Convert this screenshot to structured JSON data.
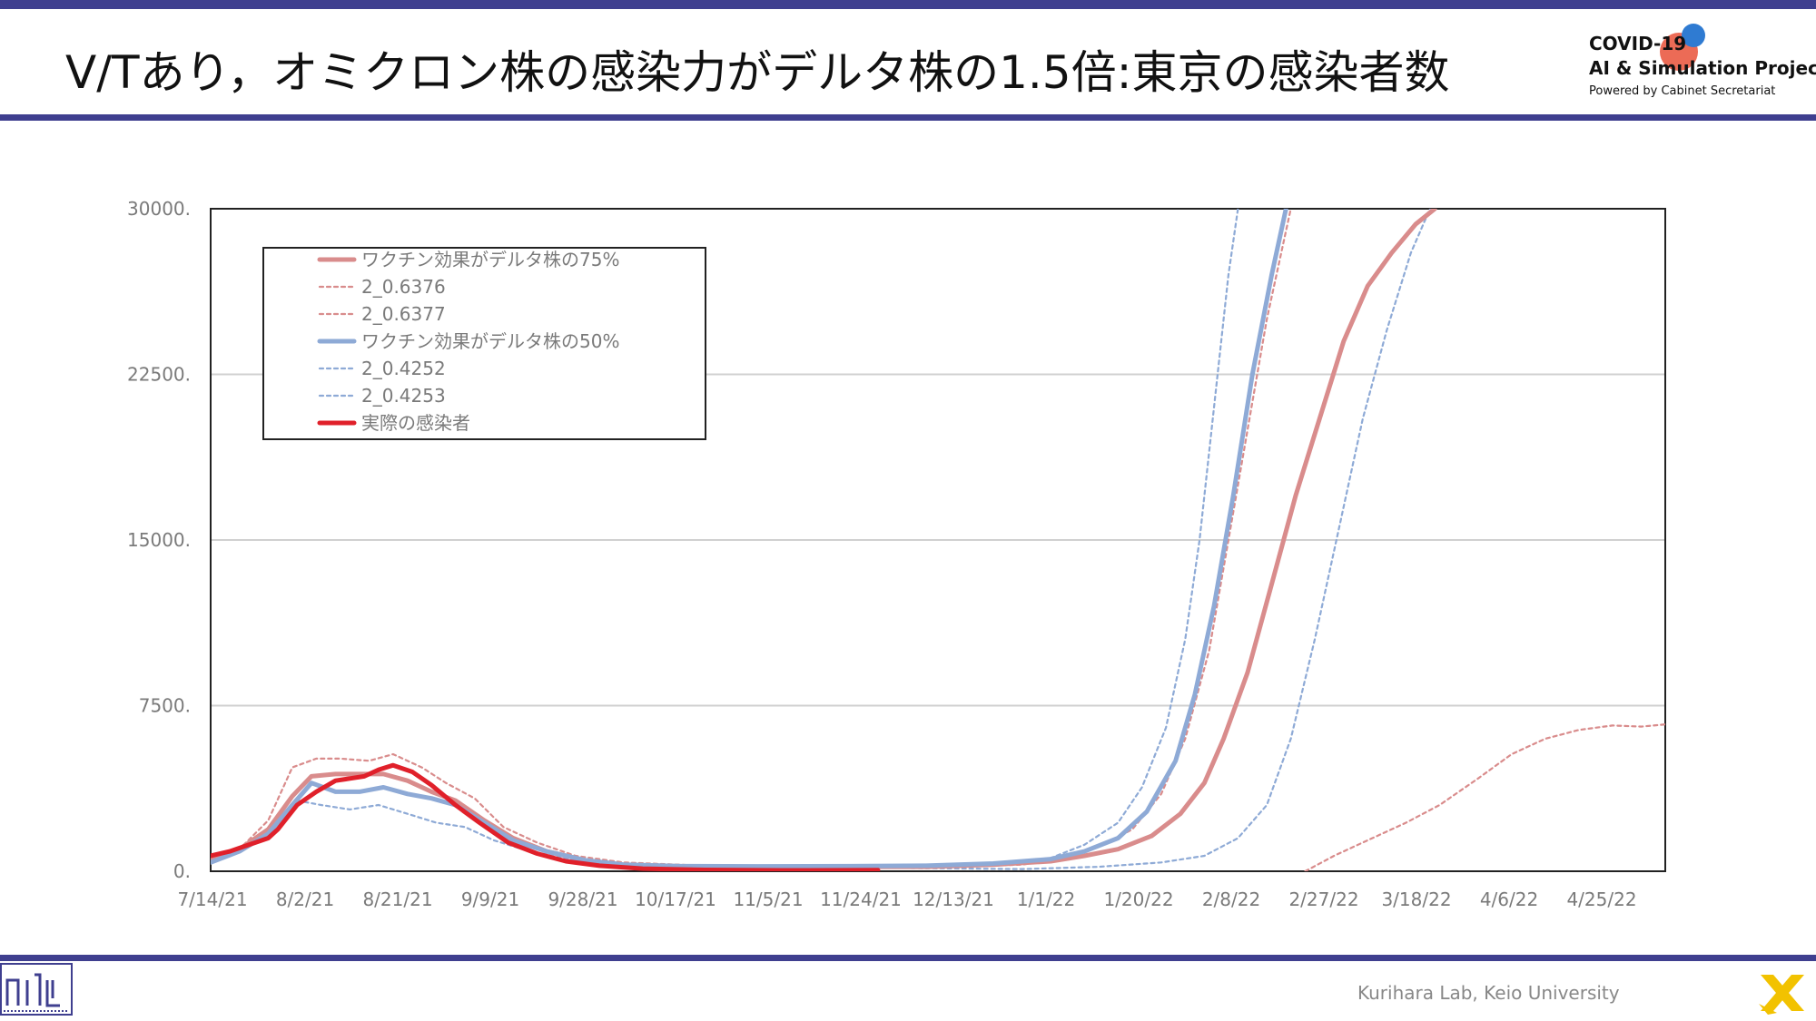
{
  "header": {
    "title": "V/Tあり，オミクロン株の感染力がデルタ株の1.5倍:東京の感染者数"
  },
  "project": {
    "line1": "COVID-19",
    "line2": "AI & Simulation Project",
    "line3": "Powered by Cabinet Secretariat"
  },
  "footer": {
    "lab": "Kurihara Lab, Keio University"
  },
  "colors": {
    "accent_bar": "#3f3f8f",
    "red_series": "#d98c8c",
    "blue_series": "#8eaad6",
    "actual_series": "#e0202a"
  },
  "chart_data": {
    "type": "line",
    "title": "",
    "xlabel": "",
    "ylabel": "",
    "xlim": [
      "2021-07-14",
      "2022-05-13"
    ],
    "ylim": [
      0,
      30000
    ],
    "y_ticks": [
      {
        "value": 0,
        "label": "0."
      },
      {
        "value": 7500,
        "label": "7500."
      },
      {
        "value": 15000,
        "label": "15000."
      },
      {
        "value": 22500,
        "label": "22500."
      },
      {
        "value": 30000,
        "label": "30000."
      }
    ],
    "x_ticks": [
      "7/14/21",
      "8/2/21",
      "8/21/21",
      "9/9/21",
      "9/28/21",
      "10/17/21",
      "11/5/21",
      "11/24/21",
      "12/13/21",
      "1/1/22",
      "1/20/22",
      "2/8/22",
      "2/27/22",
      "3/18/22",
      "4/6/22",
      "4/25/22"
    ],
    "grid": "horizontal",
    "legend_position": "top-left",
    "series": [
      {
        "name": "ワクチン効果がデルタ株の75%",
        "color": "#d98c8c",
        "style": "solid-thick",
        "points": [
          [
            "2021-07-14",
            500
          ],
          [
            "2021-07-20",
            1000
          ],
          [
            "2021-07-26",
            1900
          ],
          [
            "2021-07-31",
            3400
          ],
          [
            "2021-08-04",
            4300
          ],
          [
            "2021-08-09",
            4400
          ],
          [
            "2021-08-14",
            4400
          ],
          [
            "2021-08-19",
            4400
          ],
          [
            "2021-08-24",
            4100
          ],
          [
            "2021-08-29",
            3600
          ],
          [
            "2021-09-03",
            3200
          ],
          [
            "2021-09-09",
            2300
          ],
          [
            "2021-09-15",
            1500
          ],
          [
            "2021-09-22",
            900
          ],
          [
            "2021-09-30",
            500
          ],
          [
            "2021-10-08",
            300
          ],
          [
            "2021-10-20",
            220
          ],
          [
            "2021-11-05",
            200
          ],
          [
            "2021-11-24",
            200
          ],
          [
            "2021-12-10",
            200
          ],
          [
            "2021-12-24",
            300
          ],
          [
            "2022-01-05",
            450
          ],
          [
            "2022-01-12",
            700
          ],
          [
            "2022-01-19",
            1000
          ],
          [
            "2022-01-26",
            1600
          ],
          [
            "2022-02-01",
            2600
          ],
          [
            "2022-02-06",
            4000
          ],
          [
            "2022-02-10",
            6000
          ],
          [
            "2022-02-15",
            9000
          ],
          [
            "2022-02-20",
            13000
          ],
          [
            "2022-02-25",
            17000
          ],
          [
            "2022-03-02",
            20500
          ],
          [
            "2022-03-07",
            24000
          ],
          [
            "2022-03-12",
            26500
          ],
          [
            "2022-03-17",
            28000
          ],
          [
            "2022-03-22",
            29300
          ],
          [
            "2022-03-26",
            30000
          ]
        ]
      },
      {
        "name": "2_0.6376",
        "color": "#d98c8c",
        "style": "dotted",
        "points": [
          [
            "2021-07-14",
            500
          ],
          [
            "2021-07-20",
            1000
          ],
          [
            "2021-07-26",
            2300
          ],
          [
            "2021-07-31",
            4700
          ],
          [
            "2021-08-05",
            5100
          ],
          [
            "2021-08-10",
            5100
          ],
          [
            "2021-08-16",
            5000
          ],
          [
            "2021-08-21",
            5300
          ],
          [
            "2021-08-27",
            4700
          ],
          [
            "2021-09-01",
            4000
          ],
          [
            "2021-09-07",
            3300
          ],
          [
            "2021-09-13",
            2000
          ],
          [
            "2021-09-20",
            1300
          ],
          [
            "2021-09-28",
            700
          ],
          [
            "2021-10-08",
            400
          ],
          [
            "2021-10-25",
            250
          ],
          [
            "2021-11-20",
            200
          ],
          [
            "2021-12-15",
            200
          ],
          [
            "2021-12-30",
            300
          ],
          [
            "2022-01-08",
            600
          ],
          [
            "2022-01-15",
            1100
          ],
          [
            "2022-01-22",
            1900
          ],
          [
            "2022-01-28",
            3500
          ],
          [
            "2022-02-02",
            6000
          ],
          [
            "2022-02-07",
            10000
          ],
          [
            "2022-02-11",
            15000
          ],
          [
            "2022-02-15",
            20000
          ],
          [
            "2022-02-19",
            25000
          ],
          [
            "2022-02-24",
            30000
          ]
        ]
      },
      {
        "name": "2_0.6377",
        "color": "#d98c8c",
        "style": "dotted",
        "points": [
          [
            "2022-02-27",
            0
          ],
          [
            "2022-03-05",
            700
          ],
          [
            "2022-03-12",
            1400
          ],
          [
            "2022-03-20",
            2200
          ],
          [
            "2022-03-27",
            3000
          ],
          [
            "2022-04-04",
            4200
          ],
          [
            "2022-04-11",
            5300
          ],
          [
            "2022-04-18",
            6000
          ],
          [
            "2022-04-25",
            6400
          ],
          [
            "2022-05-02",
            6600
          ],
          [
            "2022-05-08",
            6550
          ],
          [
            "2022-05-13",
            6650
          ]
        ]
      },
      {
        "name": "ワクチン効果がデルタ株の50%",
        "color": "#8eaad6",
        "style": "solid-thick",
        "points": [
          [
            "2021-07-14",
            400
          ],
          [
            "2021-07-20",
            900
          ],
          [
            "2021-07-26",
            1700
          ],
          [
            "2021-07-31",
            3000
          ],
          [
            "2021-08-04",
            4000
          ],
          [
            "2021-08-09",
            3600
          ],
          [
            "2021-08-14",
            3600
          ],
          [
            "2021-08-19",
            3800
          ],
          [
            "2021-08-24",
            3500
          ],
          [
            "2021-08-29",
            3300
          ],
          [
            "2021-09-03",
            3000
          ],
          [
            "2021-09-09",
            2200
          ],
          [
            "2021-09-15",
            1400
          ],
          [
            "2021-09-22",
            900
          ],
          [
            "2021-09-30",
            500
          ],
          [
            "2021-10-08",
            300
          ],
          [
            "2021-10-20",
            230
          ],
          [
            "2021-11-05",
            220
          ],
          [
            "2021-11-24",
            230
          ],
          [
            "2021-12-10",
            250
          ],
          [
            "2021-12-24",
            350
          ],
          [
            "2022-01-05",
            550
          ],
          [
            "2022-01-12",
            900
          ],
          [
            "2022-01-19",
            1500
          ],
          [
            "2022-01-25",
            2700
          ],
          [
            "2022-01-31",
            5000
          ],
          [
            "2022-02-04",
            8000
          ],
          [
            "2022-02-08",
            12000
          ],
          [
            "2022-02-12",
            17000
          ],
          [
            "2022-02-16",
            22500
          ],
          [
            "2022-02-20",
            27000
          ],
          [
            "2022-02-23",
            30000
          ]
        ]
      },
      {
        "name": "2_0.4252",
        "color": "#8eaad6",
        "style": "dotted",
        "points": [
          [
            "2021-07-14",
            400
          ],
          [
            "2021-07-20",
            900
          ],
          [
            "2021-07-26",
            1700
          ],
          [
            "2021-08-01",
            3200
          ],
          [
            "2021-08-06",
            3000
          ],
          [
            "2021-08-12",
            2800
          ],
          [
            "2021-08-18",
            3000
          ],
          [
            "2021-08-24",
            2600
          ],
          [
            "2021-08-30",
            2200
          ],
          [
            "2021-09-05",
            2000
          ],
          [
            "2021-09-11",
            1400
          ],
          [
            "2021-09-17",
            1000
          ],
          [
            "2021-09-25",
            600
          ],
          [
            "2021-10-05",
            300
          ],
          [
            "2021-10-20",
            200
          ],
          [
            "2021-11-10",
            200
          ],
          [
            "2021-12-05",
            200
          ],
          [
            "2021-12-24",
            300
          ],
          [
            "2022-01-05",
            600
          ],
          [
            "2022-01-12",
            1200
          ],
          [
            "2022-01-19",
            2200
          ],
          [
            "2022-01-24",
            3800
          ],
          [
            "2022-01-29",
            6500
          ],
          [
            "2022-02-02",
            10500
          ],
          [
            "2022-02-05",
            15000
          ],
          [
            "2022-02-08",
            21000
          ],
          [
            "2022-02-11",
            27000
          ],
          [
            "2022-02-13",
            30000
          ]
        ]
      },
      {
        "name": "2_0.4253",
        "color": "#8eaad6",
        "style": "dotted",
        "points": [
          [
            "2021-10-15",
            200
          ],
          [
            "2021-11-05",
            200
          ],
          [
            "2021-12-05",
            150
          ],
          [
            "2021-12-30",
            100
          ],
          [
            "2022-01-15",
            200
          ],
          [
            "2022-01-28",
            400
          ],
          [
            "2022-02-06",
            700
          ],
          [
            "2022-02-13",
            1500
          ],
          [
            "2022-02-19",
            3000
          ],
          [
            "2022-02-24",
            6000
          ],
          [
            "2022-03-01",
            10500
          ],
          [
            "2022-03-06",
            15500
          ],
          [
            "2022-03-11",
            20500
          ],
          [
            "2022-03-16",
            24500
          ],
          [
            "2022-03-21",
            28000
          ],
          [
            "2022-03-25",
            30000
          ]
        ]
      },
      {
        "name": "実際の感染者",
        "color": "#e0202a",
        "style": "solid-bold",
        "points": [
          [
            "2021-07-14",
            700
          ],
          [
            "2021-07-18",
            900
          ],
          [
            "2021-07-22",
            1200
          ],
          [
            "2021-07-26",
            1500
          ],
          [
            "2021-07-28",
            1900
          ],
          [
            "2021-08-01",
            3000
          ],
          [
            "2021-08-05",
            3600
          ],
          [
            "2021-08-09",
            4100
          ],
          [
            "2021-08-12",
            4200
          ],
          [
            "2021-08-15",
            4300
          ],
          [
            "2021-08-18",
            4600
          ],
          [
            "2021-08-21",
            4800
          ],
          [
            "2021-08-25",
            4500
          ],
          [
            "2021-08-29",
            3900
          ],
          [
            "2021-09-03",
            3000
          ],
          [
            "2021-09-08",
            2200
          ],
          [
            "2021-09-14",
            1300
          ],
          [
            "2021-09-20",
            800
          ],
          [
            "2021-09-26",
            450
          ],
          [
            "2021-10-03",
            250
          ],
          [
            "2021-10-12",
            120
          ],
          [
            "2021-10-25",
            60
          ],
          [
            "2021-11-10",
            40
          ],
          [
            "2021-11-30",
            50
          ]
        ]
      }
    ]
  }
}
